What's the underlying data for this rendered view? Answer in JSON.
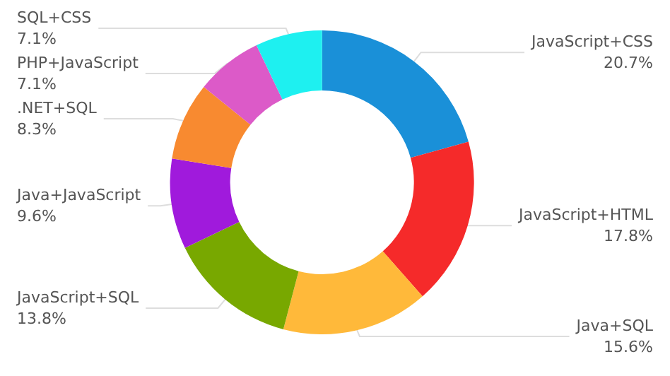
{
  "chart_data": {
    "type": "donut",
    "categories": [
      "JavaScript+CSS",
      "JavaScript+HTML",
      "Java+SQL",
      "JavaScript+SQL",
      "Java+JavaScript",
      ".NET+SQL",
      "PHP+JavaScript",
      "SQL+CSS"
    ],
    "values": [
      20.7,
      17.8,
      15.6,
      13.8,
      9.6,
      8.3,
      7.1,
      7.1
    ],
    "value_labels": [
      "20.7%",
      "17.8%",
      "15.6%",
      "13.8%",
      "9.6%",
      "8.3%",
      "7.1%",
      "7.1%"
    ],
    "colors": [
      "#1a90d8",
      "#f52a2a",
      "#ffb93a",
      "#78a800",
      "#a01adc",
      "#f88a30",
      "#dc5ac8",
      "#1ef0f0"
    ],
    "legend": false
  }
}
